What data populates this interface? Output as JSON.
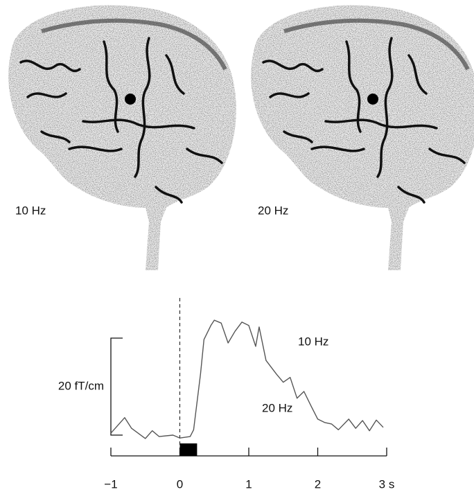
{
  "brains": {
    "labels": [
      "10 Hz",
      "20 Hz"
    ]
  },
  "chart_data": {
    "type": "line",
    "x": [
      -1,
      -0.8,
      -0.7,
      -0.5,
      -0.4,
      -0.3,
      -0.1,
      0,
      0.15,
      0.2,
      0.3,
      0.35,
      0.45,
      0.5,
      0.6,
      0.7,
      0.8,
      0.9,
      1.0,
      1.1,
      1.15,
      1.25,
      1.4,
      1.5,
      1.6,
      1.7,
      1.8,
      1.9,
      2.0,
      2.1,
      2.2,
      2.3,
      2.45,
      2.55,
      2.65,
      2.75,
      2.85,
      2.95
    ],
    "series": [
      {
        "color": "#555555",
        "values": [
          0.4,
          3.6,
          1.4,
          -0.7,
          0.9,
          -0.3,
          0,
          -0.6,
          -0.3,
          1.1,
          12.6,
          19.7,
          22.6,
          23.7,
          23.1,
          19,
          21.4,
          23.3,
          22.6,
          18.3,
          22.3,
          15.4,
          12.6,
          10.9,
          11.9,
          7.6,
          9,
          6.1,
          3.3,
          2.6,
          2.3,
          1.1,
          3.3,
          1.4,
          3,
          0.9,
          3.1,
          1.6
        ]
      }
    ],
    "xlim": [
      -1,
      3
    ],
    "xticks": [
      {
        "value": -1,
        "label": "−1"
      },
      0,
      1,
      2,
      {
        "value": 3,
        "label": "3 s"
      }
    ],
    "ylim": [
      -3,
      27
    ],
    "scale_bar": {
      "value": 20,
      "label": "20 fT/cm"
    },
    "stimulus": [
      0,
      0.25
    ],
    "annotations": [
      "10 Hz",
      "20 Hz"
    ]
  }
}
